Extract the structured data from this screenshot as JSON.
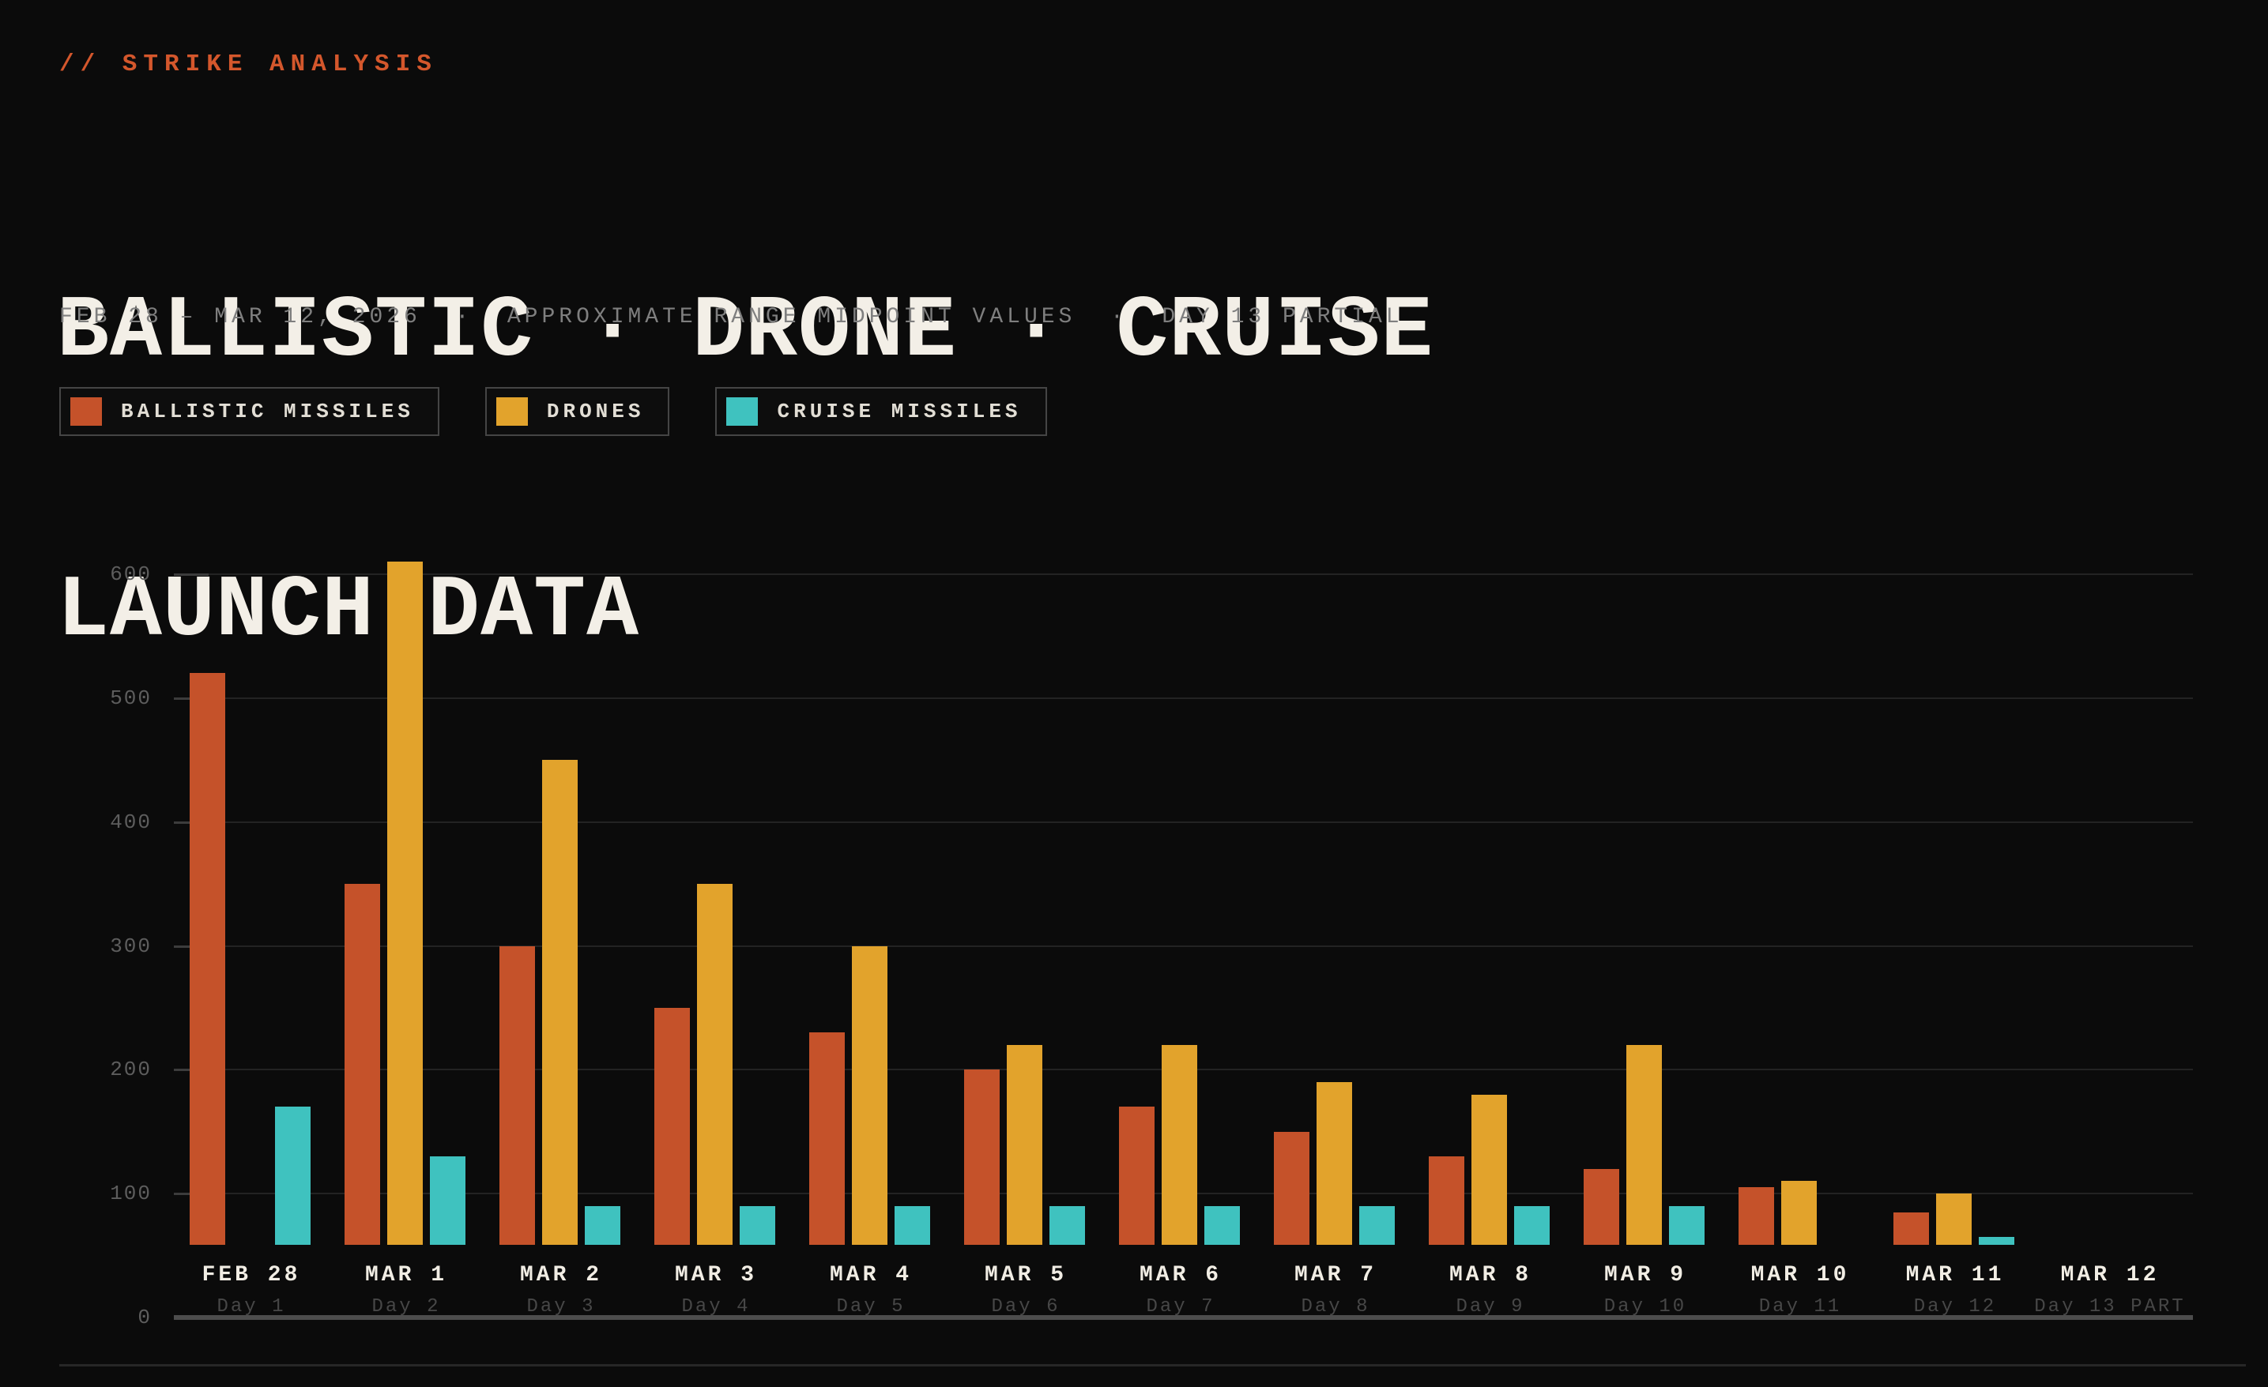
{
  "page": {
    "eyebrow": "// STRIKE ANALYSIS",
    "title_line1": "BALLISTIC · DRONE · CRUISE",
    "title_line2": "LAUNCH DATA",
    "subtitle": "FEB 28 – MAR 12, 2026  ·  APPROXIMATE RANGE MIDPOINT VALUES  ·  DAY 13 PARTIAL"
  },
  "colors": {
    "background": "#0b0b0b",
    "accent": "#d4572c",
    "ballistic": "#c5522a",
    "drones": "#e2a32c",
    "cruise": "#3fc2bf",
    "grid": "#232323",
    "axis": "#4d4d4d",
    "tick_label": "#5d5d5d",
    "date_label": "#f1ede4",
    "day_label": "#474747"
  },
  "legend": {
    "items": [
      {
        "label": "BALLISTIC MISSILES",
        "series_key": "ballistic"
      },
      {
        "label": "DRONES",
        "series_key": "drones"
      },
      {
        "label": "CRUISE MISSILES",
        "series_key": "cruise"
      }
    ]
  },
  "chart_data": {
    "type": "bar",
    "title": "BALLISTIC · DRONE · CRUISE LAUNCH DATA",
    "subtitle": "FEB 28 – MAR 12, 2026 · APPROXIMATE RANGE MIDPOINT VALUES · DAY 13 PARTIAL",
    "categories": [
      "FEB 28",
      "MAR 1",
      "MAR 2",
      "MAR 3",
      "MAR 4",
      "MAR 5",
      "MAR 6",
      "MAR 7",
      "MAR 8",
      "MAR 9",
      "MAR 10",
      "MAR 11",
      "MAR 12"
    ],
    "day_labels": [
      "Day 1",
      "Day 2",
      "Day 3",
      "Day 4",
      "Day 5",
      "Day 6",
      "Day 7",
      "Day 8",
      "Day 9",
      "Day 10",
      "Day 11",
      "Day 12",
      "Day 13 PART"
    ],
    "series": [
      {
        "name": "BALLISTIC MISSILES",
        "key": "ballistic",
        "values": [
          520,
          350,
          300,
          250,
          230,
          200,
          170,
          150,
          130,
          120,
          105,
          85,
          null
        ]
      },
      {
        "name": "DRONES",
        "key": "drones",
        "values": [
          null,
          610,
          450,
          350,
          300,
          220,
          220,
          190,
          180,
          220,
          110,
          100,
          null
        ]
      },
      {
        "name": "CRUISE MISSILES",
        "key": "cruise",
        "values": [
          170,
          130,
          90,
          90,
          90,
          90,
          90,
          90,
          90,
          90,
          null,
          65,
          null
        ]
      }
    ],
    "xlabel": "",
    "ylabel": "",
    "ylim": [
      0,
      600
    ],
    "yticks": [
      0,
      100,
      200,
      300,
      400,
      500,
      600
    ],
    "grid": true,
    "legend_position": "top"
  }
}
